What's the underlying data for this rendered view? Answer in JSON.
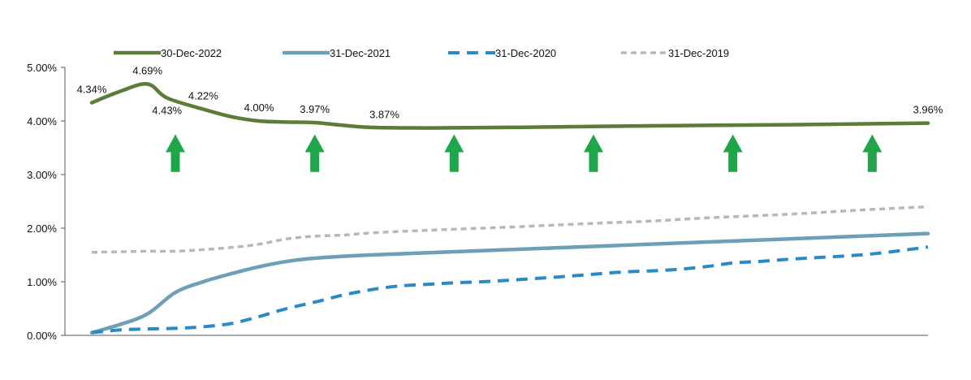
{
  "chart_data": {
    "type": "line",
    "title": "",
    "xlabel": "",
    "ylabel": "",
    "ylim": [
      0,
      5
    ],
    "y_ticks": [
      "0.00%",
      "1.00%",
      "2.00%",
      "3.00%",
      "4.00%",
      "5.00%"
    ],
    "x_range": [
      0,
      30
    ],
    "legend_position": "top",
    "grid": false,
    "series": [
      {
        "name": "30-Dec-2022",
        "color": "#5a7d38",
        "style": "solid",
        "x": [
          0,
          1,
          2,
          2.7,
          4,
          5,
          6,
          7,
          8,
          9,
          10,
          12,
          15,
          20,
          25,
          30
        ],
        "y": [
          4.34,
          4.55,
          4.69,
          4.43,
          4.22,
          4.08,
          4.0,
          3.98,
          3.97,
          3.92,
          3.88,
          3.87,
          3.88,
          3.91,
          3.93,
          3.96
        ]
      },
      {
        "name": "31-Dec-2021",
        "color": "#6e9fb8",
        "style": "solid",
        "x": [
          0,
          1,
          2,
          3,
          4,
          5,
          6,
          7,
          8,
          10,
          15,
          20,
          25,
          30
        ],
        "y": [
          0.05,
          0.2,
          0.4,
          0.8,
          1.0,
          1.15,
          1.28,
          1.38,
          1.44,
          1.5,
          1.6,
          1.7,
          1.8,
          1.9
        ]
      },
      {
        "name": "31-Dec-2020",
        "color": "#2a8ac4",
        "style": "dashed",
        "x": [
          0,
          1,
          2,
          3,
          4,
          5,
          6,
          7,
          8,
          9,
          10,
          11,
          12,
          13,
          14,
          15,
          17,
          19,
          20,
          21,
          22,
          23,
          24,
          25,
          26,
          27,
          28,
          29,
          30
        ],
        "y": [
          0.05,
          0.1,
          0.12,
          0.13,
          0.16,
          0.22,
          0.35,
          0.5,
          0.62,
          0.75,
          0.85,
          0.92,
          0.95,
          0.98,
          1.0,
          1.03,
          1.1,
          1.18,
          1.2,
          1.23,
          1.28,
          1.35,
          1.38,
          1.42,
          1.45,
          1.48,
          1.52,
          1.58,
          1.65
        ]
      },
      {
        "name": "31-Dec-2019",
        "color": "#b8b8b8",
        "style": "dotted",
        "x": [
          0,
          1,
          2,
          3,
          4,
          5,
          6,
          7,
          8,
          9,
          10,
          12,
          15,
          18,
          20,
          22,
          25,
          28,
          30
        ],
        "y": [
          1.55,
          1.56,
          1.57,
          1.57,
          1.6,
          1.64,
          1.7,
          1.8,
          1.85,
          1.87,
          1.91,
          1.96,
          2.02,
          2.09,
          2.13,
          2.19,
          2.26,
          2.35,
          2.4
        ]
      }
    ],
    "annotations": [
      {
        "x": 0,
        "y": 4.34,
        "text": "4.34%",
        "pos": "above"
      },
      {
        "x": 2,
        "y": 4.69,
        "text": "4.69%",
        "pos": "above"
      },
      {
        "x": 2.7,
        "y": 4.43,
        "text": "4.43%",
        "pos": "below"
      },
      {
        "x": 4,
        "y": 4.22,
        "text": "4.22%",
        "pos": "above"
      },
      {
        "x": 6,
        "y": 4.0,
        "text": "4.00%",
        "pos": "above"
      },
      {
        "x": 8,
        "y": 3.97,
        "text": "3.97%",
        "pos": "above"
      },
      {
        "x": 10.5,
        "y": 3.87,
        "text": "3.87%",
        "pos": "above"
      },
      {
        "x": 30,
        "y": 3.96,
        "text": "3.96%",
        "pos": "above"
      }
    ],
    "arrows": {
      "color": "#1fa64a",
      "x": [
        3,
        8,
        13,
        18,
        23,
        28
      ],
      "bottom_y": 3.05,
      "top_y": 3.75
    }
  }
}
